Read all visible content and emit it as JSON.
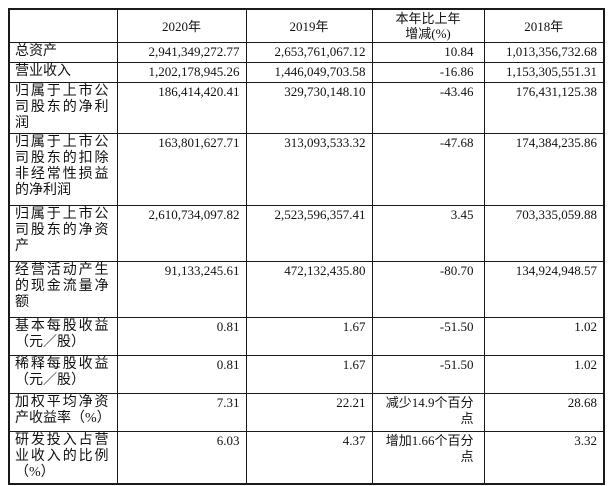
{
  "document": {
    "colors": {
      "background": "#ffffff",
      "border": "#1a1a1a",
      "text": "#111111"
    },
    "table": {
      "columns": [
        "",
        "2020年",
        "2019年",
        "本年比上年\n增减(%)",
        "2018年"
      ],
      "rows": [
        {
          "label": "总资产",
          "y2020": "2,941,349,272.77",
          "y2019": "2,653,761,067.12",
          "change": "10.84",
          "y2018": "1,013,356,732.68"
        },
        {
          "label": "营业收入",
          "y2020": "1,202,178,945.26",
          "y2019": "1,446,049,703.58",
          "change": "-16.86",
          "y2018": "1,153,305,551.31"
        },
        {
          "label": "归属于上市公司股东的净利润",
          "y2020": "186,414,420.41",
          "y2019": "329,730,148.10",
          "change": "-43.46",
          "y2018": "176,431,125.38"
        },
        {
          "label": "归属于上市公司股东的扣除非经常性损益的净利润",
          "y2020": "163,801,627.71",
          "y2019": "313,093,533.32",
          "change": "-47.68",
          "y2018": "174,384,235.86"
        },
        {
          "label": "归属于上市公司股东的净资产",
          "y2020": "2,610,734,097.82",
          "y2019": "2,523,596,357.41",
          "change": "3.45",
          "y2018": "703,335,059.88"
        },
        {
          "label": "经营活动产生的现金流量净额",
          "y2020": "91,133,245.61",
          "y2019": "472,132,435.80",
          "change": "-80.70",
          "y2018": "134,924,948.57"
        },
        {
          "label": "基本每股收益（元／股）",
          "y2020": "0.81",
          "y2019": "1.67",
          "change": "-51.50",
          "y2018": "1.02"
        },
        {
          "label": "稀释每股收益（元／股）",
          "y2020": "0.81",
          "y2019": "1.67",
          "change": "-51.50",
          "y2018": "1.02"
        },
        {
          "label": "加权平均净资产收益率（%）",
          "y2020": "7.31",
          "y2019": "22.21",
          "change": "减少14.9个百分点",
          "y2018": "28.68"
        },
        {
          "label": "研发投入占营业收入的比例（%）",
          "y2020": "6.03",
          "y2019": "4.37",
          "change": "增加1.66个百分点",
          "y2018": "3.32"
        }
      ]
    }
  }
}
